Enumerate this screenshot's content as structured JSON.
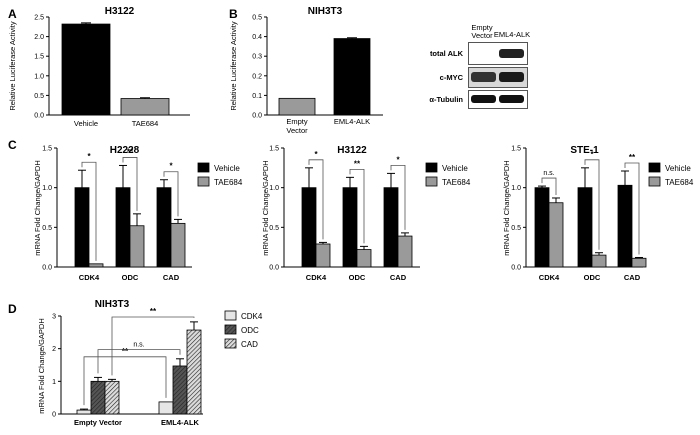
{
  "panels": {
    "a": "A",
    "b": "B",
    "c": "C",
    "d": "D"
  },
  "blot": {
    "col_headers": [
      "Empty Vector",
      "EML4-ALK"
    ],
    "col_header_lines": [
      [
        "Empty",
        "Vector"
      ],
      [
        "EML4-ALK"
      ]
    ],
    "rows": [
      "total ALK",
      "c-MYC",
      "α-Tubulin"
    ]
  },
  "chart_data": [
    {
      "id": "A",
      "type": "bar",
      "title": "H3122",
      "ylabel": "Relative Luciferase Activity",
      "ylim": [
        0,
        2.5
      ],
      "yticks": [
        "0.0",
        "0.5",
        "1.0",
        "1.5",
        "2.0",
        "2.5"
      ],
      "categories": [
        "Vehicle",
        "TAE684"
      ],
      "values": [
        2.32,
        0.42
      ],
      "errors": [
        0.03,
        0.02
      ],
      "colors": [
        "#000000",
        "#9a9a9a"
      ]
    },
    {
      "id": "B",
      "type": "bar",
      "title": "NIH3T3",
      "ylabel": "Relative Luciferase Activity",
      "ylim": [
        0,
        0.5
      ],
      "yticks": [
        "0.0",
        "0.1",
        "0.2",
        "0.3",
        "0.4",
        "0.5"
      ],
      "categories": [
        "Empty Vector",
        "EML4-ALK"
      ],
      "category_lines": [
        [
          "Empty",
          "Vector"
        ],
        [
          "EML4-ALK"
        ]
      ],
      "values": [
        0.085,
        0.39
      ],
      "errors": [
        0.0,
        0.004
      ],
      "colors": [
        "#9a9a9a",
        "#000000"
      ]
    },
    {
      "id": "C1",
      "type": "bar",
      "title": "H2228",
      "ylabel": "mRNA Fold Change/GAPDH",
      "ylim": [
        0,
        1.5
      ],
      "yticks": [
        "0.0",
        "0.5",
        "1.0",
        "1.5"
      ],
      "categories": [
        "CDK4",
        "ODC",
        "CAD"
      ],
      "series": [
        {
          "name": "Vehicle",
          "values": [
            1.0,
            1.0,
            1.0
          ],
          "errors": [
            0.22,
            0.28,
            0.1
          ],
          "color": "#000000"
        },
        {
          "name": "TAE684",
          "values": [
            0.04,
            0.52,
            0.55
          ],
          "errors": [
            0.0,
            0.15,
            0.05
          ],
          "color": "#9a9a9a"
        }
      ],
      "significance": [
        "*",
        "**",
        "*"
      ]
    },
    {
      "id": "C2",
      "type": "bar",
      "title": "H3122",
      "ylabel": "mRNA Fold Change/GAPDH",
      "ylim": [
        0,
        1.5
      ],
      "yticks": [
        "0.0",
        "0.5",
        "1.0",
        "1.5"
      ],
      "categories": [
        "CDK4",
        "ODC",
        "CAD"
      ],
      "series": [
        {
          "name": "Vehicle",
          "values": [
            1.0,
            1.0,
            1.0
          ],
          "errors": [
            0.25,
            0.13,
            0.18
          ],
          "color": "#000000"
        },
        {
          "name": "TAE684",
          "values": [
            0.29,
            0.22,
            0.39
          ],
          "errors": [
            0.02,
            0.04,
            0.04
          ],
          "color": "#9a9a9a"
        }
      ],
      "significance": [
        "*",
        "**",
        "*"
      ]
    },
    {
      "id": "C3",
      "type": "bar",
      "title": "STE-1",
      "ylabel": "mRNA Fold Change/GAPDH",
      "ylim": [
        0,
        1.5
      ],
      "yticks": [
        "0.0",
        "0.5",
        "1.0",
        "1.5"
      ],
      "categories": [
        "CDK4",
        "ODC",
        "CAD"
      ],
      "series": [
        {
          "name": "Vehicle",
          "values": [
            1.0,
            1.0,
            1.03
          ],
          "errors": [
            0.02,
            0.25,
            0.18
          ],
          "color": "#000000"
        },
        {
          "name": "TAE684",
          "values": [
            0.81,
            0.15,
            0.11
          ],
          "errors": [
            0.06,
            0.03,
            0.01
          ],
          "color": "#9a9a9a"
        }
      ],
      "significance": [
        "n.s.",
        "*",
        "**"
      ]
    },
    {
      "id": "D",
      "type": "bar",
      "title": "NIH3T3",
      "ylabel": "mRNA Fold Change/GAPDH",
      "ylim": [
        0,
        3
      ],
      "yticks": [
        "0",
        "1",
        "2",
        "3"
      ],
      "categories": [
        "Empty Vector",
        "EML4-ALK"
      ],
      "series": [
        {
          "name": "CDK4",
          "values": [
            0.12,
            0.37
          ],
          "errors": [
            0.03,
            0.0
          ],
          "color": "#e6e6e6"
        },
        {
          "name": "ODC",
          "values": [
            1.0,
            1.47
          ],
          "errors": [
            0.12,
            0.22
          ],
          "color": "#333333"
        },
        {
          "name": "CAD",
          "values": [
            1.0,
            2.57
          ],
          "errors": [
            0.06,
            0.25
          ],
          "color": "#888888"
        }
      ],
      "significance": [
        "**",
        "n.s.",
        "**"
      ]
    }
  ]
}
